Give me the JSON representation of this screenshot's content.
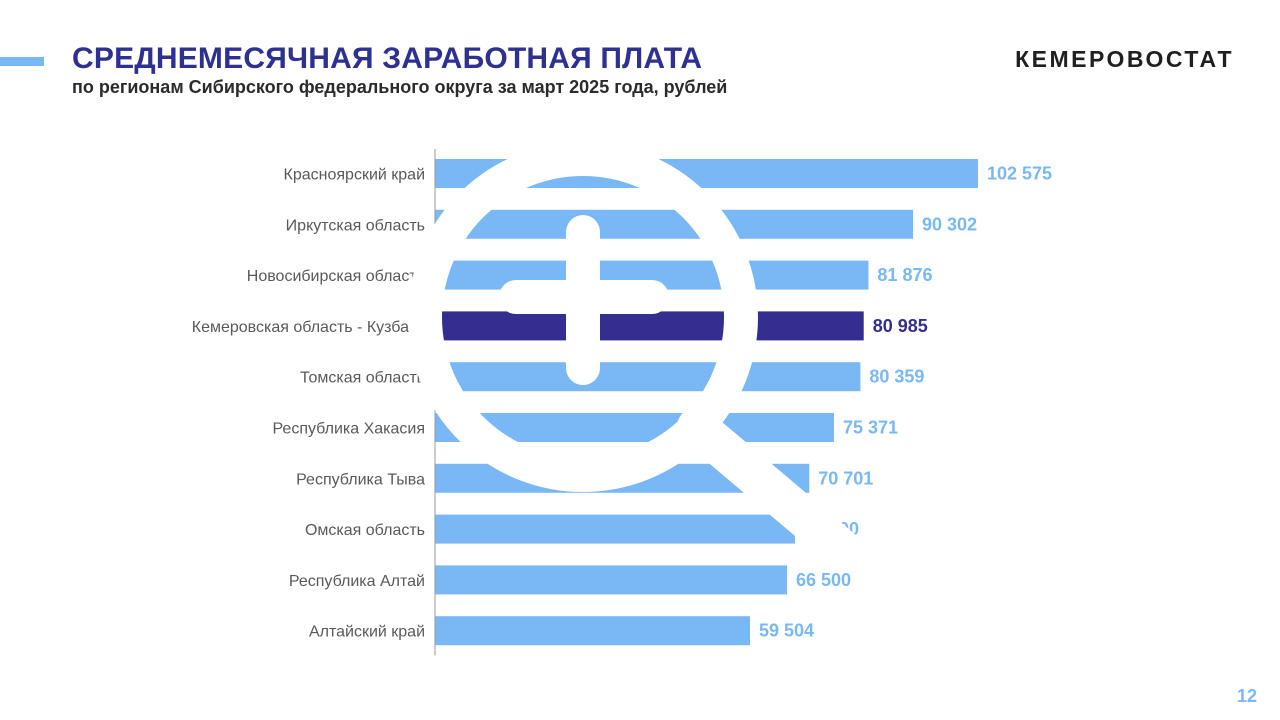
{
  "header": {
    "title": "СРЕДНЕМЕСЯЧНАЯ ЗАРАБОТНАЯ ПЛАТА",
    "subtitle": "по регионам Сибирского федерального округа за март 2025 года, рублей",
    "brand": "КЕМЕРОВОСТАТ"
  },
  "footer": {
    "page_number": "12"
  },
  "colors": {
    "title": "#2e3192",
    "bar": "#7ab8f5",
    "highlight_bar": "#332e8f",
    "accent_line": "#7ab8f5",
    "page_number": "#7ab8f5",
    "axis": "#9a9a9a"
  },
  "watermark_icon": "search-magnifier-icon",
  "chart_data": {
    "type": "bar",
    "orientation": "horizontal",
    "categories": [
      "Красноярский край",
      "Иркутская область",
      "Новосибирская область",
      "Кемеровская область - Кузбасс",
      "Томская область",
      "Республика Хакасия",
      "Республика Тыва",
      "Омская область",
      "Республика Алтай",
      "Алтайский край"
    ],
    "values": [
      102575,
      90302,
      81876,
      80985,
      80359,
      75371,
      70701,
      68000,
      66500,
      59504
    ],
    "value_labels": [
      "102 575",
      "90 302",
      "81 876",
      "80 985",
      "80 359",
      "75 371",
      "70 701",
      "68 000",
      "66 500",
      "59 504"
    ],
    "highlight_index": 3,
    "xlim": [
      0,
      102575
    ],
    "grid": false,
    "legend": "none"
  }
}
